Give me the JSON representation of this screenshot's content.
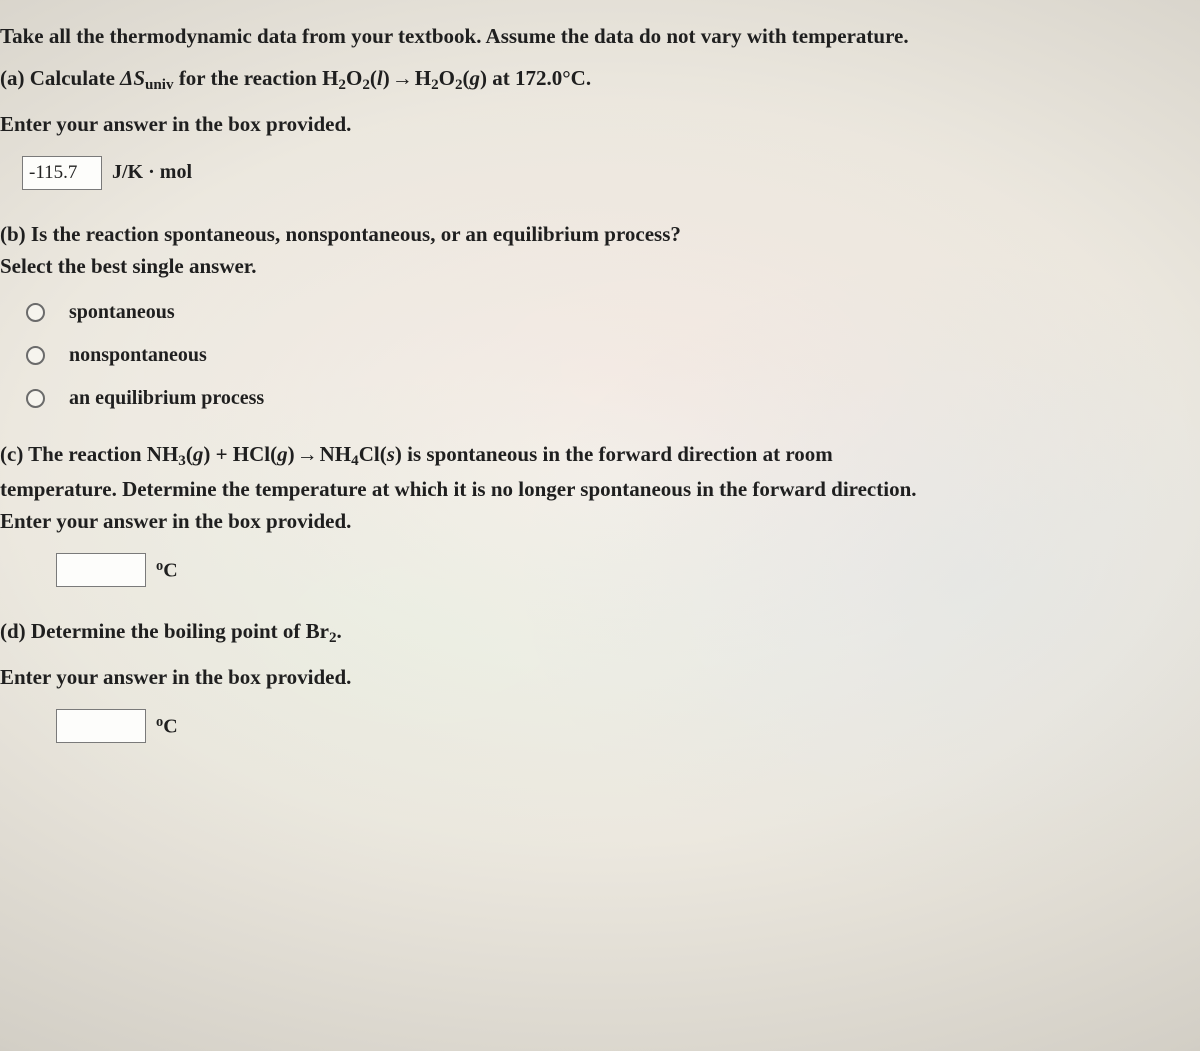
{
  "intro": "Take all the thermodynamic data from your textbook. Assume the data do not vary with temperature.",
  "a": {
    "prefix": "(a) Calculate ",
    "delta_s": "ΔS",
    "sub": "univ",
    "mid": " for the reaction H",
    "o2l": "O",
    "phase_l": "(l)",
    "arrow": " → ",
    "phase_g": "(g) at 172.0°C.",
    "line2": "Enter your answer in the box provided.",
    "value": "-115.7",
    "unit_html": "J/K · mol"
  },
  "b": {
    "q": "(b) Is the reaction spontaneous, nonspontaneous, or an equilibrium process?",
    "instr": "Select the best single answer.",
    "opts": [
      "spontaneous",
      "nonspontaneous",
      "an equilibrium process"
    ]
  },
  "c": {
    "prefix": "(c) The reaction NH",
    "mid1": "(g) + HCl(g) → NH",
    "tail1": "Cl(s) is spontaneous in the forward direction at room",
    "line2": "temperature. Determine the temperature at which it is no longer spontaneous in the forward direction.",
    "line3": "Enter your answer in the box provided.",
    "value": "",
    "unit": "°C"
  },
  "d": {
    "prefix": "(d) Determine the boiling point of Br",
    "suffix": ".",
    "instr": "Enter your answer in the box provided.",
    "value": "",
    "unit": "°C"
  }
}
